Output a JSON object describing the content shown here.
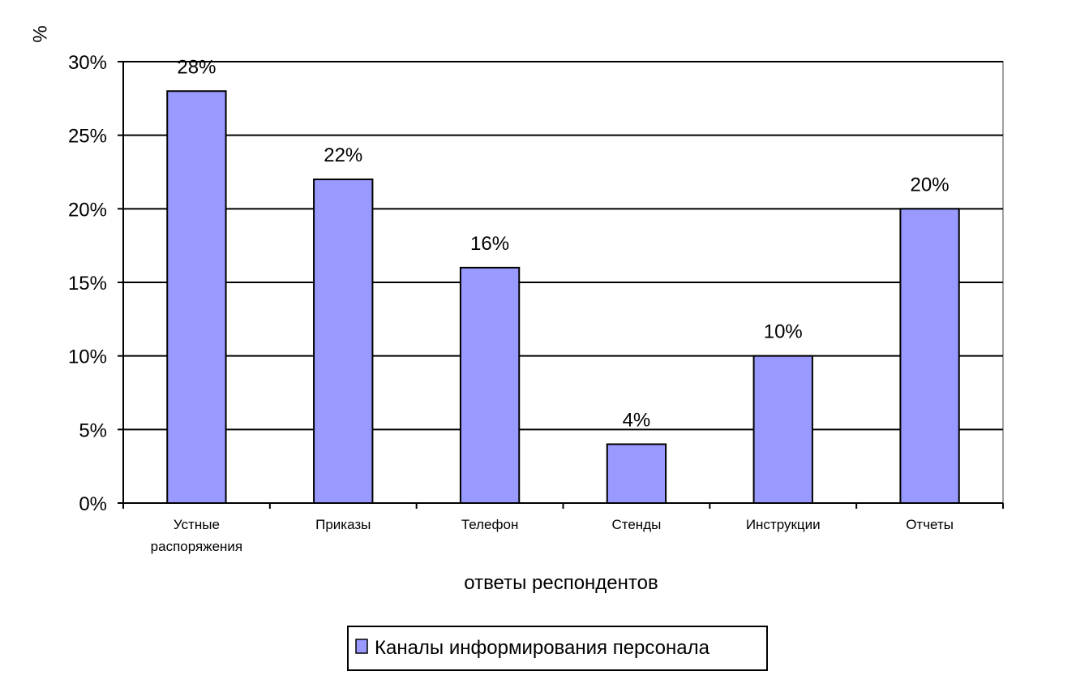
{
  "chart_data": {
    "type": "bar",
    "title": "",
    "ylabel": "%",
    "xlabel": "ответы респондентов",
    "ylim": [
      0,
      30
    ],
    "y_ticks": [
      "0%",
      "5%",
      "10%",
      "15%",
      "20%",
      "25%",
      "30%"
    ],
    "y_tick_values": [
      0,
      5,
      10,
      15,
      20,
      25,
      30
    ],
    "grid": true,
    "legend_position": "bottom",
    "categories": [
      [
        "Устные",
        "распоряжения"
      ],
      [
        "Приказы"
      ],
      [
        "Телефон"
      ],
      [
        "Стенды"
      ],
      [
        "Инструкции"
      ],
      [
        "Отчеты"
      ]
    ],
    "series": [
      {
        "name": "Каналы информирования персонала",
        "color": "#9999ff",
        "values": [
          28,
          22,
          16,
          4,
          10,
          20
        ],
        "labels": [
          "28%",
          "22%",
          "16%",
          "4%",
          "10%",
          "20%"
        ]
      }
    ]
  }
}
